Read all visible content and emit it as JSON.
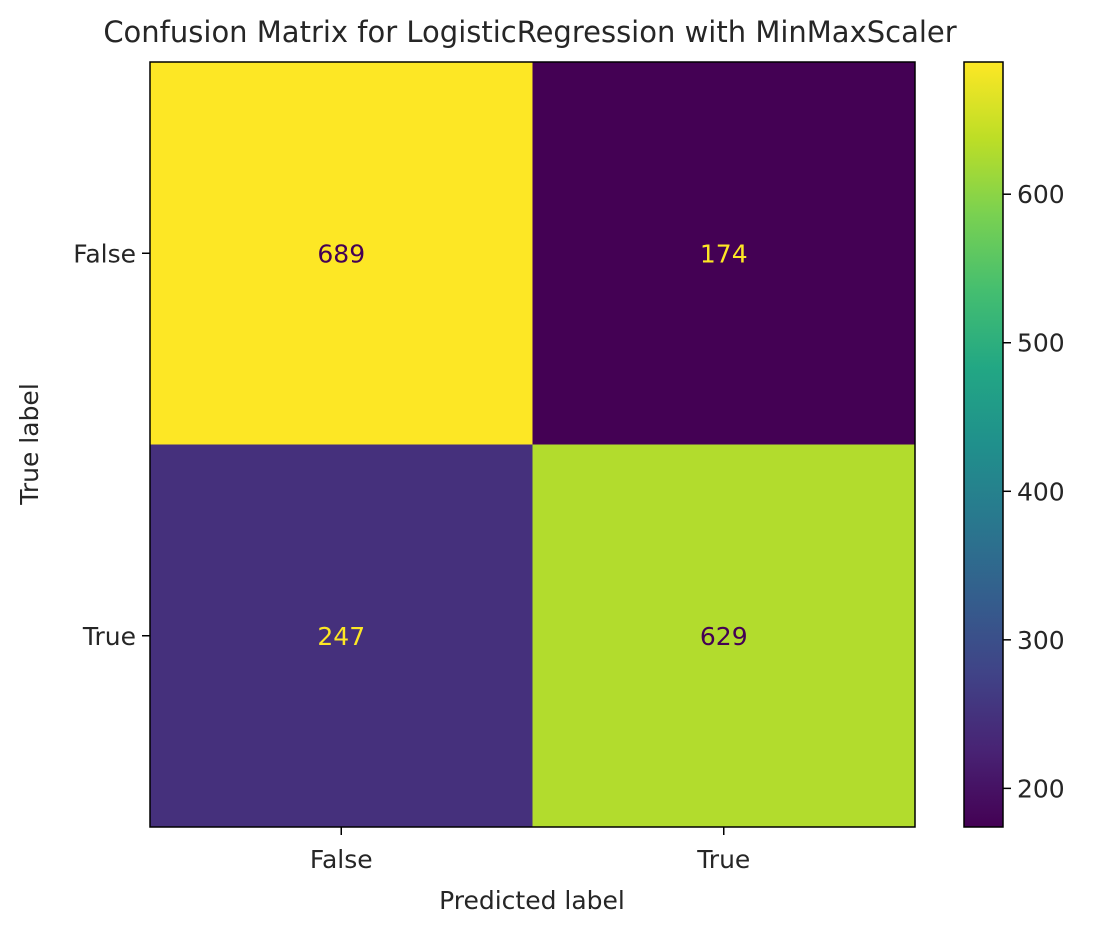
{
  "chart_data": {
    "type": "heatmap",
    "title": "Confusion Matrix for LogisticRegression with MinMaxScaler",
    "xlabel": "Predicted label",
    "ylabel": "True label",
    "x_categories": [
      "False",
      "True"
    ],
    "y_categories": [
      "False",
      "True"
    ],
    "matrix": [
      [
        689,
        174
      ],
      [
        247,
        629
      ]
    ],
    "cell_labels": [
      [
        "689",
        "174"
      ],
      [
        "247",
        "629"
      ]
    ],
    "colormap": "viridis",
    "colorbar": {
      "range": [
        174,
        689
      ],
      "ticks": [
        200,
        300,
        400,
        500,
        600
      ],
      "tick_labels": [
        "200",
        "300",
        "400",
        "500",
        "600"
      ]
    },
    "cell_text_colors": {
      "on_dark": "#fde725",
      "on_light": "#440154"
    },
    "grid": false
  }
}
